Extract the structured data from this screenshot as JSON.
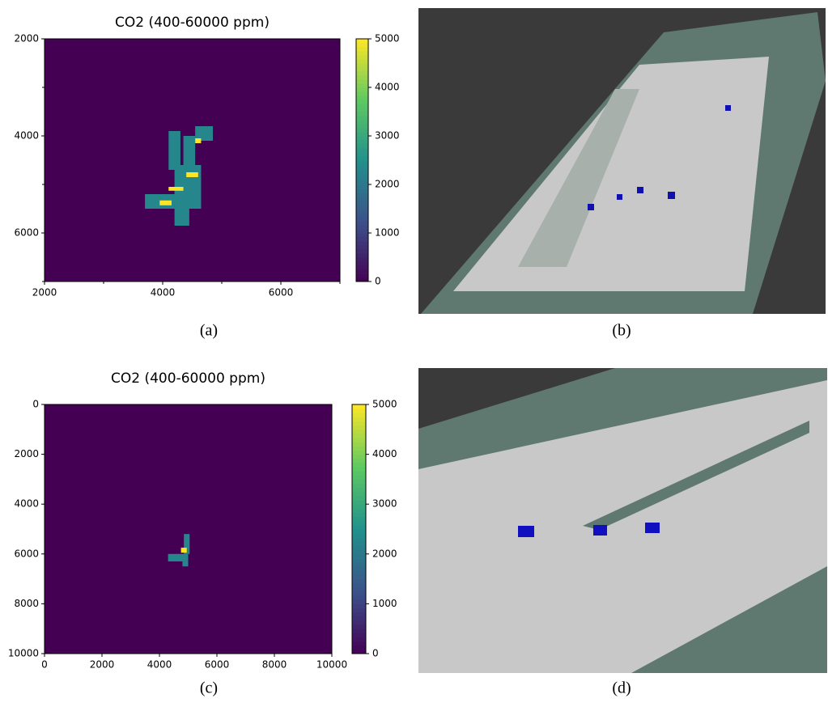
{
  "chart_data": [
    {
      "type": "heatmap",
      "title": "CO2 (400-60000 ppm)",
      "panel": "(a)",
      "xlim": [
        2000,
        7000
      ],
      "xticks": [
        2000,
        4000,
        6000
      ],
      "xminor": [
        3000,
        5000,
        7000
      ],
      "ylim": [
        7000,
        2000
      ],
      "yticks": [
        2000,
        4000,
        6000
      ],
      "yminor": [
        3000,
        5000,
        7000
      ],
      "background_value": 0,
      "cells": [
        {
          "x": [
            4100,
            4300
          ],
          "y": [
            3900,
            4700
          ],
          "value": 2300
        },
        {
          "x": [
            4350,
            4550
          ],
          "y": [
            4000,
            4800
          ],
          "value": 2300
        },
        {
          "x": [
            4550,
            4850
          ],
          "y": [
            3800,
            4100
          ],
          "value": 2300
        },
        {
          "x": [
            4200,
            4650
          ],
          "y": [
            4600,
            5500
          ],
          "value": 2300
        },
        {
          "x": [
            3700,
            4350
          ],
          "y": [
            5200,
            5500
          ],
          "value": 2300
        },
        {
          "x": [
            4200,
            4450
          ],
          "y": [
            5400,
            5850
          ],
          "value": 2300
        },
        {
          "x": [
            4550,
            4650
          ],
          "y": [
            4050,
            4150
          ],
          "value": 5000
        },
        {
          "x": [
            4400,
            4600
          ],
          "y": [
            4750,
            4850
          ],
          "value": 5000
        },
        {
          "x": [
            4100,
            4350
          ],
          "y": [
            5050,
            5130
          ],
          "value": 5000
        },
        {
          "x": [
            3950,
            4150
          ],
          "y": [
            5330,
            5430
          ],
          "value": 5000
        }
      ],
      "colorbar": {
        "ylim": [
          0,
          5000
        ],
        "yticks": [
          0,
          1000,
          2000,
          3000,
          4000,
          5000
        ]
      },
      "colormap": [
        "#440154",
        "#3b528b",
        "#21918c",
        "#5ec962",
        "#fde725"
      ]
    },
    {
      "type": "heatmap",
      "title": "CO2 (400-60000 ppm)",
      "panel": "(c)",
      "xlim": [
        0,
        10000
      ],
      "xticks": [
        0,
        2000,
        4000,
        6000,
        8000,
        10000
      ],
      "xminor": [],
      "ylim": [
        10000,
        0
      ],
      "yticks": [
        0,
        2000,
        4000,
        6000,
        8000,
        10000
      ],
      "yminor": [],
      "background_value": 0,
      "cells": [
        {
          "x": [
            4850,
            5050
          ],
          "y": [
            5200,
            6000
          ],
          "value": 2300
        },
        {
          "x": [
            4300,
            5000
          ],
          "y": [
            6000,
            6300
          ],
          "value": 2300
        },
        {
          "x": [
            4800,
            5000
          ],
          "y": [
            6300,
            6500
          ],
          "value": 2300
        },
        {
          "x": [
            4750,
            4950
          ],
          "y": [
            5750,
            5950
          ],
          "value": 5000
        }
      ],
      "colorbar": {
        "ylim": [
          0,
          5000
        ],
        "yticks": [
          0,
          1000,
          2000,
          3000,
          4000,
          5000
        ]
      },
      "colormap": [
        "#440154",
        "#3b528b",
        "#21918c",
        "#5ec962",
        "#fde725"
      ]
    }
  ],
  "images": [
    {
      "panel": "(b)"
    },
    {
      "panel": "(d)"
    }
  ]
}
